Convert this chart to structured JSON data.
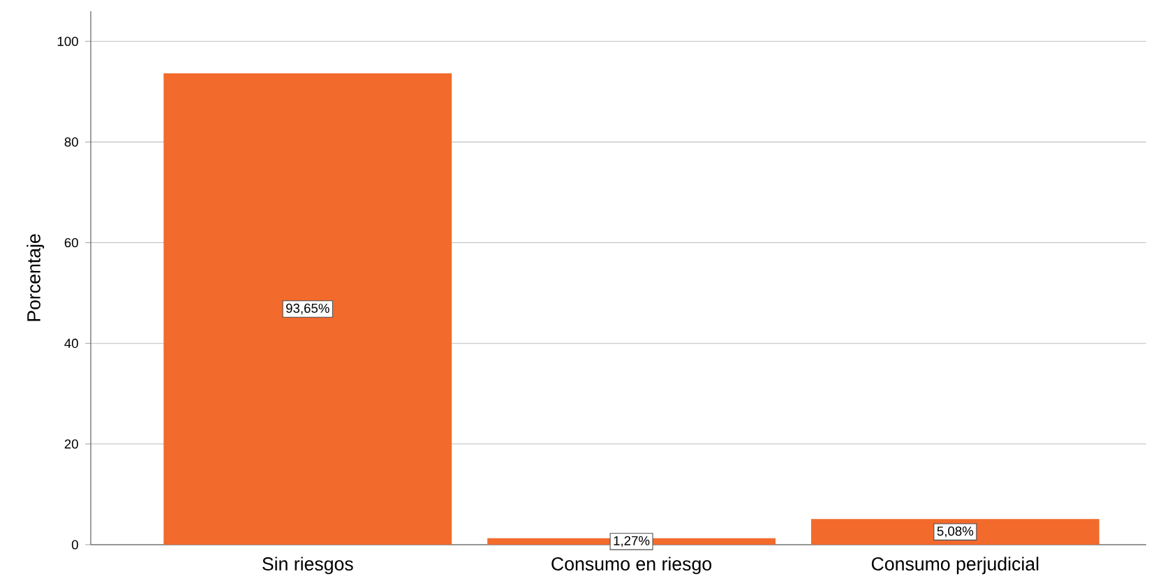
{
  "chart_data": {
    "type": "bar",
    "ylabel": "Porcentaje",
    "categories": [
      "Sin riesgos",
      "Consumo en riesgo",
      "Consumo perjudicial"
    ],
    "values": [
      93.65,
      1.27,
      5.08
    ],
    "color": "#f26a2c",
    "value_labels": [
      "93,65%",
      "1,27%",
      "5,08%"
    ],
    "ylim": [
      0,
      106
    ],
    "yticks": [
      0,
      20,
      40,
      60,
      80,
      100
    ],
    "grid": "y"
  }
}
